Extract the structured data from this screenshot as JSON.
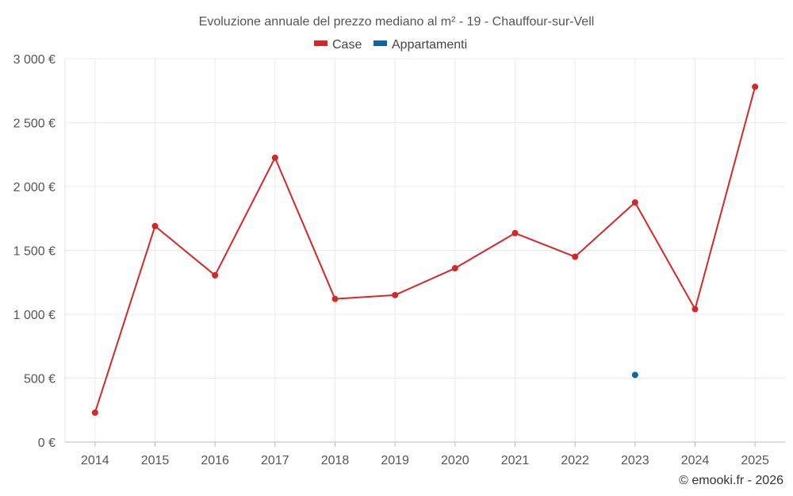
{
  "chart_data": {
    "type": "line",
    "title": "Evoluzione annuale del prezzo mediano al m² - 19 - Chauffour-sur-Vell",
    "categories": [
      "2014",
      "2015",
      "2016",
      "2017",
      "2018",
      "2019",
      "2020",
      "2021",
      "2022",
      "2023",
      "2024",
      "2025"
    ],
    "series": [
      {
        "name": "Case",
        "color": "#d62728",
        "values": [
          230,
          1690,
          1305,
          2225,
          1120,
          1150,
          1360,
          1635,
          1450,
          1875,
          1040,
          2780
        ]
      },
      {
        "name": "Appartamenti",
        "color": "#0b66a3",
        "values": [
          null,
          null,
          null,
          null,
          null,
          null,
          null,
          null,
          null,
          525,
          null,
          null
        ]
      }
    ],
    "yticks": [
      {
        "value": 0,
        "label": "0 €"
      },
      {
        "value": 500,
        "label": "500 €"
      },
      {
        "value": 1000,
        "label": "1 000 €"
      },
      {
        "value": 1500,
        "label": "1 500 €"
      },
      {
        "value": 2000,
        "label": "2 000 €"
      },
      {
        "value": 2500,
        "label": "2 500 €"
      },
      {
        "value": 3000,
        "label": "3 000 €"
      }
    ],
    "ylim": [
      0,
      3000
    ],
    "xlabel": "",
    "ylabel": "",
    "grid": true,
    "legend_position": "top-center"
  },
  "credit": "© emooki.fr - 2026"
}
